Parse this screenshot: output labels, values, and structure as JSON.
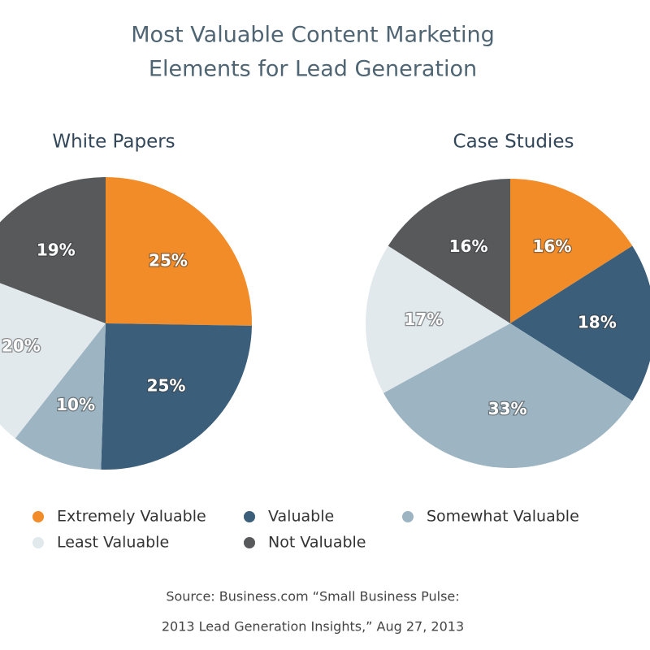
{
  "title": [
    "Most Valuable Content Marketing",
    "Elements for Lead Generation"
  ],
  "source": [
    "Source: Business.com “Small Business Pulse:",
    "2013 Lead Generation Insights,” Aug 27, 2013"
  ],
  "chart_data": [
    {
      "type": "pie",
      "title": "White Papers",
      "categories": [
        "Extremely Valuable",
        "Valuable",
        "Somewhat Valuable",
        "Least Valuable",
        "Not Valuable"
      ],
      "values": [
        25,
        25,
        10,
        20,
        19
      ],
      "value_labels": [
        "25%",
        "25%",
        "10%",
        "20%",
        "19%"
      ],
      "colors": [
        "#f28c28",
        "#3b5e7a",
        "#9db5c2",
        "#e2e9ed",
        "#58595b"
      ]
    },
    {
      "type": "pie",
      "title": "Case Studies",
      "categories": [
        "Extremely Valuable",
        "Valuable",
        "Somewhat Valuable",
        "Least Valuable",
        "Not Valuable"
      ],
      "values": [
        16,
        18,
        33,
        17,
        16
      ],
      "value_labels": [
        "16%",
        "18%",
        "33%",
        "17%",
        "16%"
      ],
      "colors": [
        "#f28c28",
        "#3b5e7a",
        "#9db5c2",
        "#e2e9ed",
        "#58595b"
      ]
    }
  ]
}
